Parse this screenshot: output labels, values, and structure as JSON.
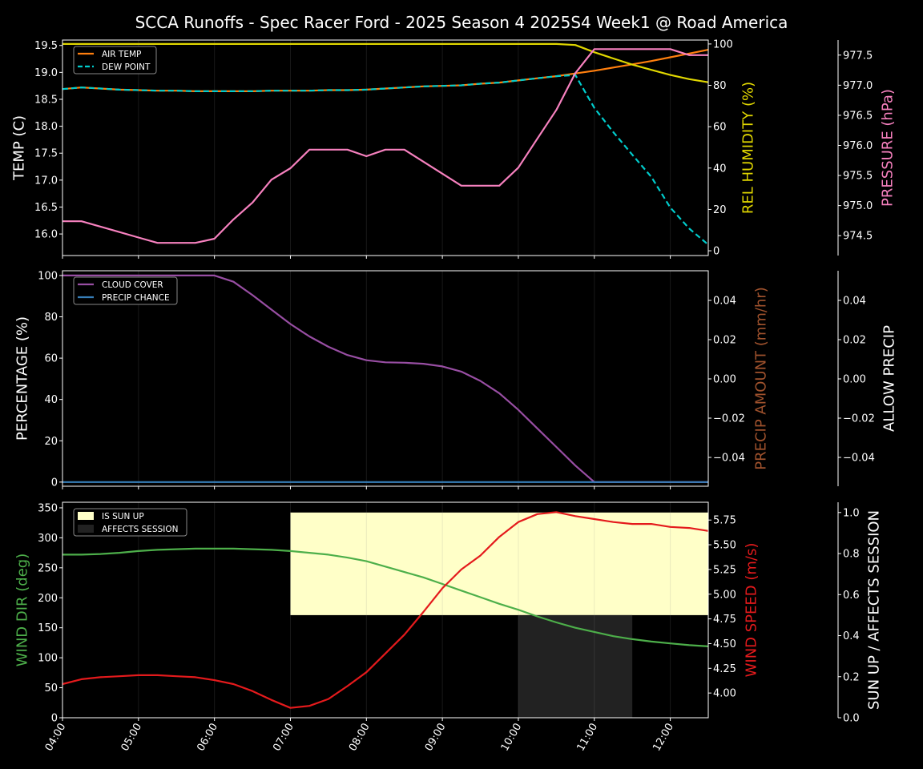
{
  "title": "SCCA Runoffs - Spec Racer Ford - 2025 Season 4 2025S4 Week1 @ Road America",
  "x_ticks": [
    "04:00",
    "05:00",
    "06:00",
    "07:00",
    "08:00",
    "09:00",
    "10:00",
    "11:00",
    "12:00"
  ],
  "times": [
    "04:00",
    "04:15",
    "04:30",
    "04:45",
    "05:00",
    "05:15",
    "05:30",
    "05:45",
    "06:00",
    "06:15",
    "06:30",
    "06:45",
    "07:00",
    "07:15",
    "07:30",
    "07:45",
    "08:00",
    "08:15",
    "08:30",
    "08:45",
    "09:00",
    "09:15",
    "09:30",
    "09:45",
    "10:00",
    "10:15",
    "10:30",
    "10:45",
    "11:00",
    "11:15",
    "11:30",
    "11:45",
    "12:00",
    "12:15",
    "12:30"
  ],
  "chart_data": [
    {
      "type": "line",
      "grid": "vertical hour lines",
      "legend_placement": "top-left",
      "left_axis": {
        "label": "TEMP (C)",
        "ylim": [
          15.6,
          19.6
        ],
        "ticks": [
          "16.0",
          "16.5",
          "17.0",
          "17.5",
          "18.0",
          "18.5",
          "19.0",
          "19.5"
        ],
        "color": "#ffffff"
      },
      "right_axis": {
        "label": "REL HUMIDITY (%)",
        "ylim": [
          -2.3,
          101.9
        ],
        "ticks": [
          "0",
          "20",
          "40",
          "60",
          "80",
          "100"
        ],
        "color": "#e0d600"
      },
      "third_axis": {
        "label": "PRESSURE (hPa)",
        "ylim": [
          974.17,
          977.75
        ],
        "ticks": [
          "974.5",
          "975.0",
          "975.5",
          "976.0",
          "976.5",
          "977.0",
          "977.5"
        ],
        "color": "#f781bf"
      },
      "series": [
        {
          "name": "AIR TEMP",
          "axis": "left",
          "color": "#ff7f0e",
          "style": "solid",
          "values": [
            18.69,
            18.72,
            18.7,
            18.68,
            18.67,
            18.66,
            18.66,
            18.65,
            18.65,
            18.65,
            18.65,
            18.66,
            18.66,
            18.66,
            18.67,
            18.67,
            18.68,
            18.7,
            18.72,
            18.74,
            18.75,
            18.76,
            18.79,
            18.81,
            18.85,
            18.89,
            18.93,
            18.98,
            19.03,
            19.09,
            19.15,
            19.21,
            19.28,
            19.35,
            19.42
          ]
        },
        {
          "name": "DEW POINT",
          "axis": "left",
          "color": "#00cccc",
          "style": "dashed",
          "values": [
            18.69,
            18.72,
            18.7,
            18.68,
            18.67,
            18.66,
            18.66,
            18.65,
            18.65,
            18.65,
            18.65,
            18.66,
            18.66,
            18.66,
            18.67,
            18.67,
            18.68,
            18.7,
            18.72,
            18.74,
            18.75,
            18.76,
            18.79,
            18.81,
            18.85,
            18.89,
            18.93,
            18.95,
            18.34,
            17.89,
            17.47,
            17.06,
            16.49,
            16.1,
            15.8
          ]
        },
        {
          "axis": "right",
          "color": "#e0d600",
          "style": "solid",
          "values": [
            100,
            100,
            100,
            100,
            100,
            100,
            100,
            100,
            100,
            100,
            100,
            100,
            100,
            100,
            100,
            100,
            100,
            100,
            100,
            100,
            100,
            100,
            100,
            100,
            100,
            100,
            100,
            99.5,
            96,
            93,
            90,
            87.5,
            85,
            83,
            81.5
          ]
        },
        {
          "axis": "third",
          "color": "#f781bf",
          "style": "solid",
          "values": [
            974.74,
            974.74,
            974.65,
            974.56,
            974.47,
            974.38,
            974.38,
            974.38,
            974.45,
            974.77,
            975.05,
            975.43,
            975.62,
            975.93,
            975.93,
            975.93,
            975.82,
            975.93,
            975.93,
            975.73,
            975.53,
            975.33,
            975.33,
            975.33,
            975.63,
            976.11,
            976.59,
            977.2,
            977.6,
            977.6,
            977.6,
            977.6,
            977.6,
            977.5,
            977.5
          ]
        }
      ]
    },
    {
      "type": "line",
      "grid": "vertical hour lines",
      "legend_placement": "top-left",
      "left_axis": {
        "label": "PERCENTAGE (%)",
        "ylim": [
          -2,
          102.3
        ],
        "ticks": [
          "0",
          "20",
          "40",
          "60",
          "80",
          "100"
        ],
        "color": "#ffffff"
      },
      "right_axis": {
        "label": "PRECIP AMOUNT (mm/hr)",
        "ylim": [
          -0.0547,
          0.0551
        ],
        "ticks": [
          "−0.04",
          "−0.02",
          "0.00",
          "0.02",
          "0.04"
        ],
        "color": "#a0522d"
      },
      "third_axis": {
        "label": "ALLOW PRECIP",
        "ylim": [
          -0.0547,
          0.0551
        ],
        "ticks": [
          "−0.04",
          "−0.02",
          "0.00",
          "0.02",
          "0.04"
        ],
        "color": "#ffffff"
      },
      "series": [
        {
          "name": "CLOUD COVER",
          "axis": "left",
          "color": "#984ea3",
          "style": "solid",
          "values": [
            100,
            100,
            100,
            100,
            100,
            100,
            100,
            100,
            100,
            97,
            90.5,
            83.5,
            76.5,
            70.5,
            65.5,
            61.5,
            59,
            58,
            57.8,
            57.3,
            56,
            53.5,
            49,
            43,
            35,
            26,
            17,
            8,
            0,
            0,
            0,
            0,
            0,
            0,
            0
          ]
        },
        {
          "name": "PRECIP CHANCE",
          "axis": "left",
          "color": "#377eb8",
          "style": "solid",
          "values": [
            0,
            0,
            0,
            0,
            0,
            0,
            0,
            0,
            0,
            0,
            0,
            0,
            0,
            0,
            0,
            0,
            0,
            0,
            0,
            0,
            0,
            0,
            0,
            0,
            0,
            0,
            0,
            0,
            0,
            0,
            0,
            0,
            0,
            0,
            0
          ]
        }
      ]
    },
    {
      "type": "line",
      "grid": "vertical hour lines",
      "legend_placement": "top-left",
      "left_axis": {
        "label": "WIND DIR (deg)",
        "ylim": [
          0,
          359.3
        ],
        "ticks": [
          "0",
          "50",
          "100",
          "150",
          "200",
          "250",
          "300",
          "350"
        ],
        "color": "#4daf4a"
      },
      "right_axis": {
        "label": "WIND SPEED (m/s)",
        "ylim": [
          3.75,
          5.93
        ],
        "ticks": [
          "4.00",
          "4.25",
          "4.50",
          "4.75",
          "5.00",
          "5.25",
          "5.50",
          "5.75"
        ],
        "color": "#e41a1c"
      },
      "third_axis": {
        "label": "SUN UP / AFFECTS SESSION",
        "ylim": [
          0,
          1.05
        ],
        "ticks": [
          "0.0",
          "0.2",
          "0.4",
          "0.6",
          "0.8",
          "1.0"
        ],
        "color": "#ffffff"
      },
      "bands": [
        {
          "name": "IS SUN UP",
          "color": "#ffffc8",
          "level": [
            0.5,
            1.0
          ],
          "values": [
            0,
            0,
            0,
            0,
            0,
            0,
            0,
            0,
            0,
            0,
            0,
            0,
            1,
            1,
            1,
            1,
            1,
            1,
            1,
            1,
            1,
            1,
            1,
            1,
            1,
            1,
            1,
            1,
            1,
            1,
            1,
            1,
            1,
            1,
            1
          ]
        },
        {
          "name": "AFFECTS SESSION",
          "color": "#222222",
          "level": [
            0,
            0.5
          ],
          "values": [
            0,
            0,
            0,
            0,
            0,
            0,
            0,
            0,
            0,
            0,
            0,
            0,
            0,
            0,
            0,
            0,
            0,
            0,
            0,
            0,
            0,
            0,
            0,
            0,
            1,
            1,
            1,
            1,
            1,
            1,
            1,
            0,
            0,
            0,
            0
          ]
        }
      ],
      "series": [
        {
          "axis": "left",
          "color": "#4daf4a",
          "style": "solid",
          "values": [
            272,
            272,
            273,
            275,
            278,
            280,
            281,
            282,
            282,
            282,
            281,
            280,
            278,
            275,
            272,
            267,
            261,
            252,
            243,
            234,
            223,
            212,
            201,
            190,
            180,
            169,
            159,
            150,
            143,
            136,
            131,
            127,
            124,
            121,
            119
          ]
        },
        {
          "axis": "right",
          "color": "#e41a1c",
          "style": "solid",
          "values": [
            4.09,
            4.14,
            4.16,
            4.17,
            4.18,
            4.18,
            4.17,
            4.16,
            4.13,
            4.09,
            4.02,
            3.93,
            3.85,
            3.87,
            3.94,
            4.07,
            4.21,
            4.4,
            4.59,
            4.82,
            5.06,
            5.25,
            5.39,
            5.58,
            5.73,
            5.81,
            5.83,
            5.79,
            5.76,
            5.73,
            5.71,
            5.71,
            5.68,
            5.67,
            5.64
          ]
        }
      ]
    }
  ]
}
